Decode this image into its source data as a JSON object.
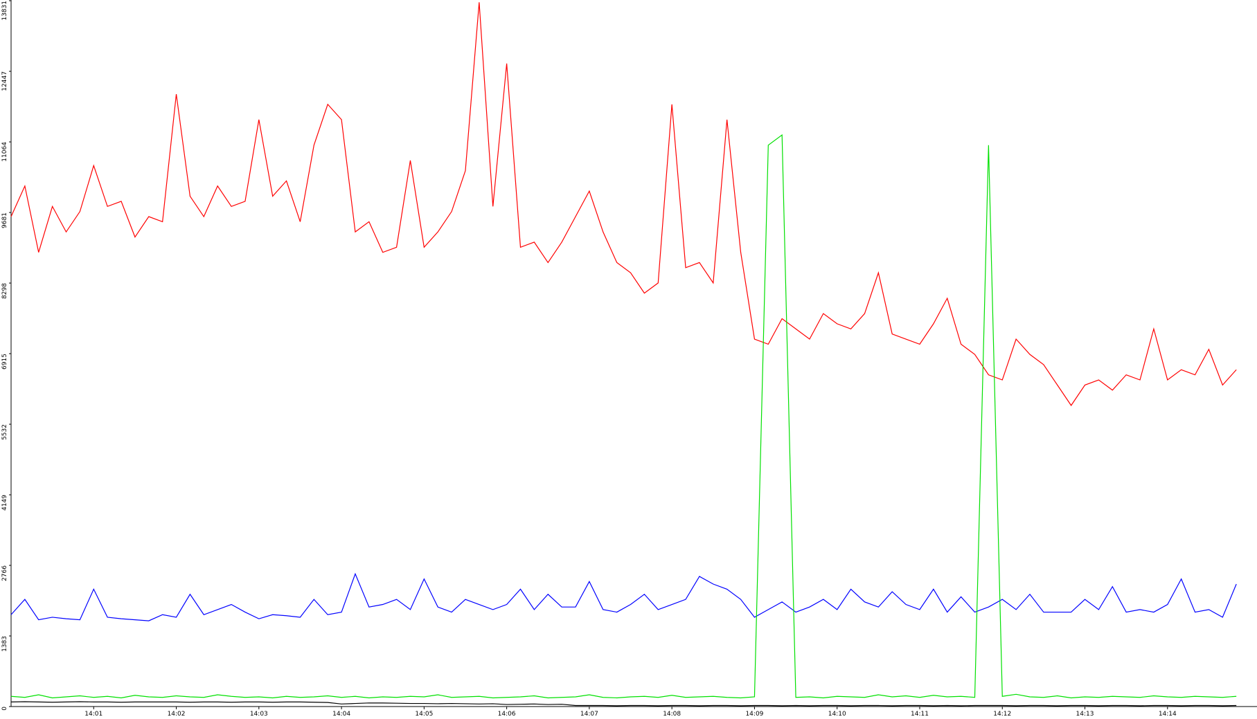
{
  "chart_data": {
    "type": "line",
    "categories": [
      null,
      null,
      null,
      null,
      null,
      null,
      "14:01",
      null,
      null,
      null,
      null,
      null,
      "14:02",
      null,
      null,
      null,
      null,
      null,
      "14:03",
      null,
      null,
      null,
      null,
      null,
      "14:04",
      null,
      null,
      null,
      null,
      null,
      "14:05",
      null,
      null,
      null,
      null,
      null,
      "14:06",
      null,
      null,
      null,
      null,
      null,
      "14:07",
      null,
      null,
      null,
      null,
      null,
      "14:08",
      null,
      null,
      null,
      null,
      null,
      "14:09",
      null,
      null,
      null,
      null,
      null,
      "14:10",
      null,
      null,
      null,
      null,
      null,
      "14:11",
      null,
      null,
      null,
      null,
      null,
      "14:12",
      null,
      null,
      null,
      null,
      null,
      "14:13",
      null,
      null,
      null,
      null,
      null,
      "14:14",
      null,
      null,
      null,
      null,
      null
    ],
    "series": [
      {
        "color": "#ff0000",
        "values": [
          9600,
          10200,
          8900,
          9800,
          9300,
          9700,
          10600,
          9800,
          9900,
          9200,
          9600,
          9500,
          12000,
          10000,
          9600,
          10200,
          9800,
          9900,
          11500,
          10000,
          10300,
          9500,
          11000,
          11800,
          11500,
          9300,
          9500,
          8900,
          9000,
          10700,
          9000,
          9300,
          9700,
          10500,
          13800,
          9800,
          12600,
          9000,
          9100,
          8700,
          9100,
          9600,
          10100,
          9300,
          8700,
          8500,
          8100,
          8300,
          11800,
          8600,
          8700,
          8300,
          11500,
          8900,
          7200,
          7100,
          7600,
          7400,
          7200,
          7700,
          7500,
          7400,
          7700,
          8500,
          7300,
          7200,
          7100,
          7500,
          8000,
          7100,
          6900,
          6500,
          6400,
          7200,
          6900,
          6700,
          6300,
          5900,
          6300,
          6400,
          6200,
          6500,
          6400,
          7400,
          6400,
          6600,
          6500,
          7000,
          6300,
          6600
        ]
      },
      {
        "color": "#0000ff",
        "values": [
          1800,
          2100,
          1700,
          1750,
          1720,
          1700,
          2300,
          1750,
          1720,
          1700,
          1680,
          1800,
          1750,
          2200,
          1800,
          1900,
          2000,
          1850,
          1720,
          1800,
          1780,
          1750,
          2100,
          1800,
          1850,
          2600,
          1950,
          2000,
          2100,
          1900,
          2500,
          1950,
          1850,
          2100,
          2000,
          1900,
          2000,
          2300,
          1900,
          2200,
          1950,
          1950,
          2450,
          1900,
          1850,
          2000,
          2200,
          1900,
          2000,
          2100,
          2550,
          2400,
          2300,
          2100,
          1750,
          1900,
          2050,
          1850,
          1950,
          2100,
          1900,
          2300,
          2050,
          1950,
          2250,
          2000,
          1900,
          2300,
          1850,
          2150,
          1850,
          1950,
          2100,
          1900,
          2200,
          1850,
          1850,
          1850,
          2100,
          1900,
          2350,
          1850,
          1900,
          1850,
          2000,
          2500,
          1850,
          1900,
          1750,
          2400
        ]
      },
      {
        "color": "#00e000",
        "values": [
          200,
          180,
          230,
          170,
          190,
          210,
          180,
          200,
          170,
          220,
          190,
          180,
          210,
          190,
          180,
          230,
          200,
          180,
          190,
          170,
          200,
          180,
          190,
          210,
          180,
          200,
          170,
          190,
          180,
          200,
          190,
          230,
          180,
          190,
          200,
          170,
          180,
          190,
          210,
          170,
          180,
          190,
          230,
          180,
          170,
          190,
          200,
          180,
          220,
          180,
          190,
          200,
          180,
          170,
          190,
          11000,
          11200,
          180,
          190,
          170,
          200,
          190,
          180,
          230,
          190,
          210,
          180,
          220,
          190,
          200,
          180,
          11000,
          200,
          240,
          190,
          180,
          210,
          170,
          190,
          180,
          200,
          190,
          180,
          210,
          190,
          180,
          200,
          190,
          180,
          200
        ]
      },
      {
        "color": "#000000",
        "values": [
          90,
          95,
          90,
          85,
          90,
          95,
          90,
          90,
          85,
          90,
          90,
          90,
          90,
          85,
          90,
          90,
          85,
          90,
          90,
          85,
          90,
          90,
          85,
          80,
          50,
          60,
          70,
          70,
          65,
          60,
          60,
          55,
          60,
          55,
          50,
          55,
          40,
          45,
          50,
          40,
          45,
          20,
          20,
          20,
          15,
          20,
          20,
          15,
          20,
          20,
          15,
          20,
          20,
          15,
          20,
          20,
          15,
          20,
          15,
          20,
          20,
          15,
          20,
          20,
          15,
          20,
          20,
          15,
          20,
          15,
          20,
          20,
          20,
          15,
          20,
          20,
          15,
          20,
          20,
          15,
          20,
          20,
          15,
          20,
          20,
          15,
          20,
          20,
          15,
          20
        ]
      }
    ],
    "ylim": [
      0,
      13831
    ],
    "yticks": [
      0,
      1383,
      2766,
      4149,
      5532,
      6915,
      8298,
      9681,
      11064,
      12447,
      13831
    ]
  }
}
